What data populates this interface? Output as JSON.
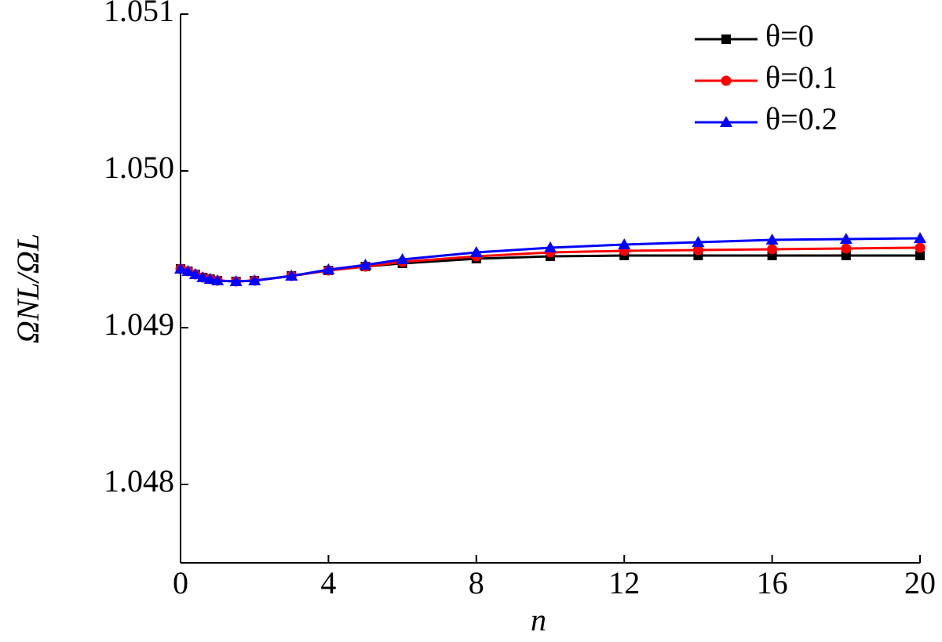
{
  "chart_data": {
    "type": "line",
    "x_label": "n",
    "y_label": "ΩNL/ΩL",
    "x": [
      0,
      0.2,
      0.4,
      0.6,
      0.8,
      1,
      1.5,
      2,
      3,
      4,
      5,
      6,
      8,
      10,
      12,
      14,
      16,
      18,
      20
    ],
    "series": [
      {
        "name": "θ=0",
        "color": "#000000",
        "marker": "square",
        "values": [
          1.049375,
          1.04936,
          1.04934,
          1.04932,
          1.04931,
          1.0493,
          1.049295,
          1.0493,
          1.04933,
          1.049365,
          1.04939,
          1.04941,
          1.04944,
          1.049455,
          1.04946,
          1.04946,
          1.04946,
          1.04946,
          1.04946
        ]
      },
      {
        "name": "θ=0.1",
        "color": "#ff0000",
        "marker": "circle",
        "values": [
          1.049375,
          1.04936,
          1.04934,
          1.04932,
          1.04931,
          1.0493,
          1.049295,
          1.0493,
          1.04933,
          1.049365,
          1.04939,
          1.04942,
          1.049455,
          1.04948,
          1.04949,
          1.049495,
          1.0495,
          1.049505,
          1.04951
        ]
      },
      {
        "name": "θ=0.2",
        "color": "#0000ff",
        "marker": "triangle",
        "values": [
          1.049375,
          1.04936,
          1.04934,
          1.04932,
          1.04931,
          1.0493,
          1.049295,
          1.0493,
          1.04933,
          1.04937,
          1.0494,
          1.049435,
          1.04948,
          1.04951,
          1.04953,
          1.049545,
          1.04956,
          1.049565,
          1.04957
        ]
      }
    ],
    "xlim": [
      0,
      20
    ],
    "xticks": [
      0,
      4,
      8,
      12,
      16,
      20
    ],
    "ylim": [
      1.0475,
      1.051
    ],
    "yticks": [
      1.048,
      1.049,
      {
        "value": 1.05,
        "label": "1.050"
      },
      1.051
    ],
    "legend": "upper right",
    "grid": false
  }
}
